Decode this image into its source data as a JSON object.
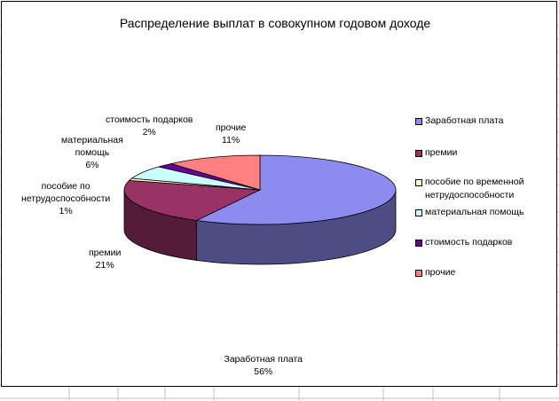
{
  "chart_data": {
    "type": "pie",
    "title": "Распределение выплат в совокупном годовом доходе",
    "categories": [
      "Заработная плата",
      "премии",
      "пособие по временной нетрудоспособности",
      "материальная помощь",
      "стоимость подарков",
      "прочие"
    ],
    "values": [
      56,
      21,
      1,
      6,
      2,
      11
    ],
    "unit": "%",
    "colors": [
      "#8c8cf0",
      "#993366",
      "#ffffcc",
      "#ccffff",
      "#660099",
      "#ff8080"
    ],
    "legend_position": "right",
    "three_d": true,
    "data_labels": [
      {
        "name": "Заработная плата",
        "lines": [
          "Заработная плата"
        ],
        "value": "56%"
      },
      {
        "name": "премии",
        "lines": [
          "премии"
        ],
        "value": "21%"
      },
      {
        "name": "пособие по нетрудоспособности",
        "lines": [
          "пособие по",
          "нетрудоспособности"
        ],
        "value": "1%"
      },
      {
        "name": "материальная помощь",
        "lines": [
          "материальная",
          "помощь"
        ],
        "value": "6%"
      },
      {
        "name": "стоимость подарков",
        "lines": [
          "стоимость подарков"
        ],
        "value": "2%"
      },
      {
        "name": "прочие",
        "lines": [
          "прочие"
        ],
        "value": "11%"
      }
    ],
    "legend": [
      {
        "lines": [
          "Заработная плата"
        ]
      },
      {
        "lines": [
          "премии"
        ]
      },
      {
        "lines": [
          "пособие по временной",
          "нетрудоспособности"
        ]
      },
      {
        "lines": [
          "материальная помощь"
        ]
      },
      {
        "lines": [
          "стоимость подарков"
        ]
      },
      {
        "lines": [
          "прочие"
        ]
      }
    ]
  }
}
